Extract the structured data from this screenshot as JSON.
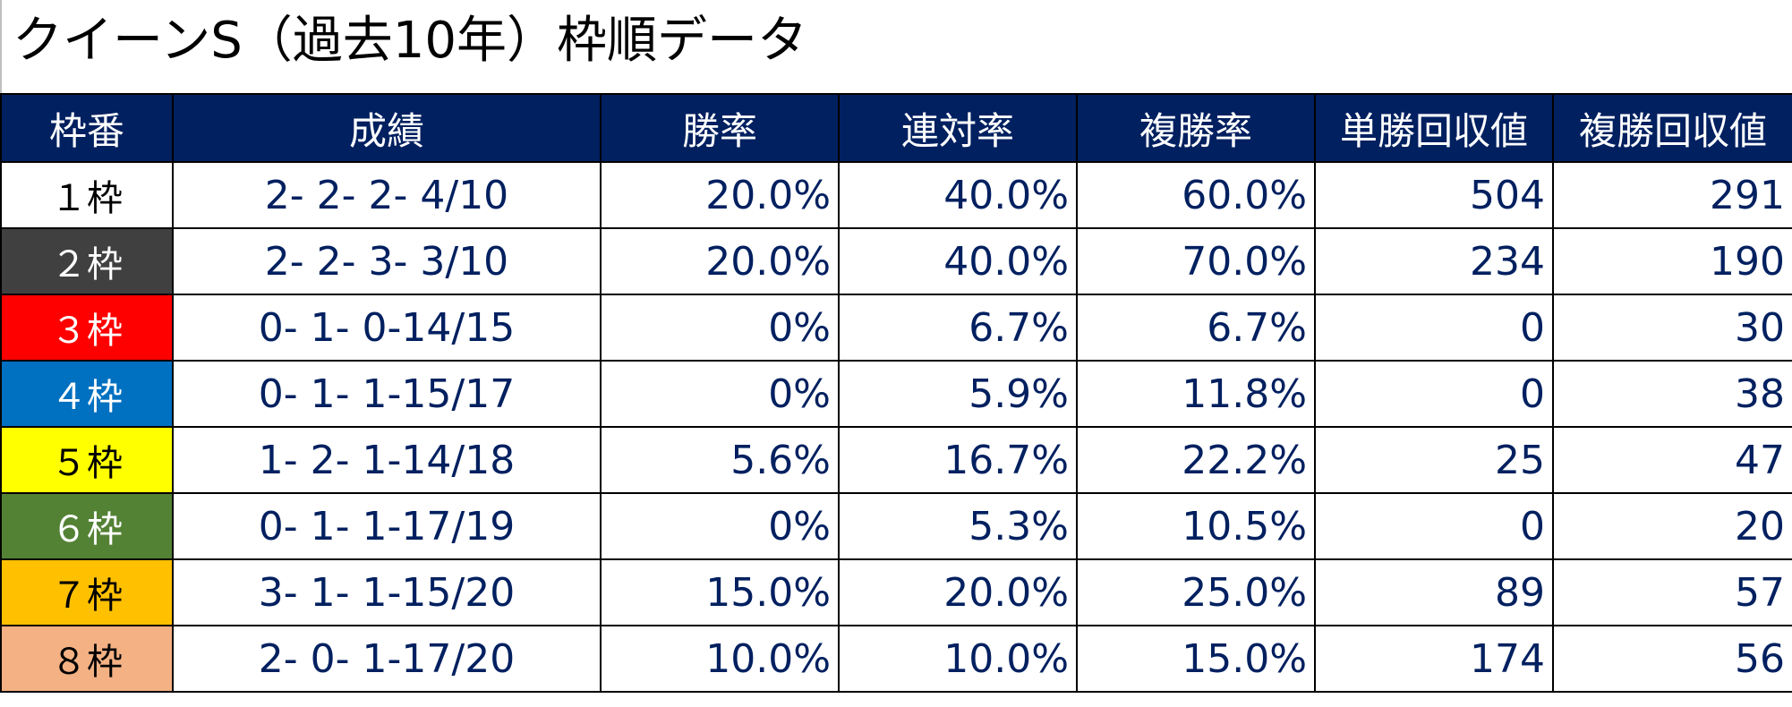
{
  "title": "クイーンS（過去10年）枠順データ",
  "headers": {
    "waku": "枠番",
    "seiseki": "成績",
    "win_rate": "勝率",
    "quinella_rate": "連対率",
    "place_rate": "複勝率",
    "win_return": "単勝回収値",
    "place_return": "複勝回収値"
  },
  "colors": {
    "header_bg": "#002060",
    "header_text": "#ffffff",
    "cell_text": "#002060"
  },
  "rows": [
    {
      "waku": "１枠",
      "waku_bg": "#ffffff",
      "waku_fg": "#000000",
      "seiseki": "2- 2- 2- 4/10",
      "win_rate": "20.0%",
      "quinella_rate": "40.0%",
      "place_rate": "60.0%",
      "win_return": "504",
      "place_return": "291"
    },
    {
      "waku": "２枠",
      "waku_bg": "#404040",
      "waku_fg": "#ffffff",
      "seiseki": "2- 2- 3- 3/10",
      "win_rate": "20.0%",
      "quinella_rate": "40.0%",
      "place_rate": "70.0%",
      "win_return": "234",
      "place_return": "190"
    },
    {
      "waku": "３枠",
      "waku_bg": "#ff0000",
      "waku_fg": "#ffffff",
      "seiseki": "0- 1- 0-14/15",
      "win_rate": "0%",
      "quinella_rate": "6.7%",
      "place_rate": "6.7%",
      "win_return": "0",
      "place_return": "30"
    },
    {
      "waku": "４枠",
      "waku_bg": "#0070c0",
      "waku_fg": "#ffffff",
      "seiseki": "0- 1- 1-15/17",
      "win_rate": "0%",
      "quinella_rate": "5.9%",
      "place_rate": "11.8%",
      "win_return": "0",
      "place_return": "38"
    },
    {
      "waku": "５枠",
      "waku_bg": "#ffff00",
      "waku_fg": "#000000",
      "seiseki": "1- 2- 1-14/18",
      "win_rate": "5.6%",
      "quinella_rate": "16.7%",
      "place_rate": "22.2%",
      "win_return": "25",
      "place_return": "47"
    },
    {
      "waku": "６枠",
      "waku_bg": "#548235",
      "waku_fg": "#ffffff",
      "seiseki": "0- 1- 1-17/19",
      "win_rate": "0%",
      "quinella_rate": "5.3%",
      "place_rate": "10.5%",
      "win_return": "0",
      "place_return": "20"
    },
    {
      "waku": "７枠",
      "waku_bg": "#ffc000",
      "waku_fg": "#000000",
      "seiseki": "3- 1- 1-15/20",
      "win_rate": "15.0%",
      "quinella_rate": "20.0%",
      "place_rate": "25.0%",
      "win_return": "89",
      "place_return": "57"
    },
    {
      "waku": "８枠",
      "waku_bg": "#f4b183",
      "waku_fg": "#000000",
      "seiseki": "2- 0- 1-17/20",
      "win_rate": "10.0%",
      "quinella_rate": "10.0%",
      "place_rate": "15.0%",
      "win_return": "174",
      "place_return": "56"
    }
  ]
}
